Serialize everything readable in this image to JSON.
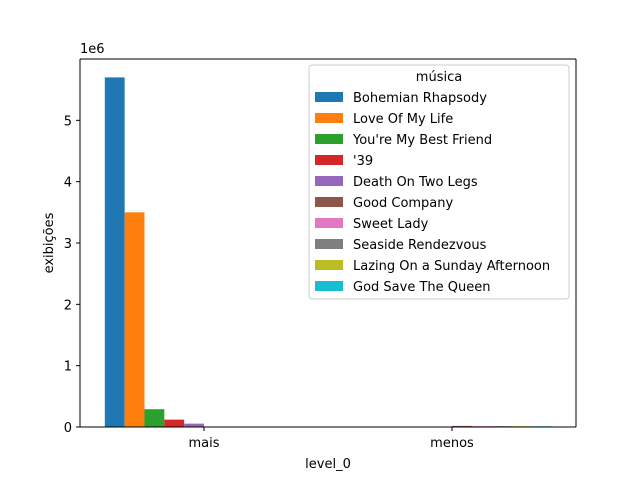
{
  "chart_data": {
    "type": "bar",
    "xlabel": "level_0",
    "ylabel": "exibições",
    "y_multiplier_label": "1e6",
    "y_scale": 1000000,
    "ylim": [
      0,
      6000000
    ],
    "yticks": [
      0,
      1,
      2,
      3,
      4,
      5
    ],
    "categories": [
      "mais",
      "menos"
    ],
    "grid": false,
    "legend": {
      "title": "música",
      "placement": "top-right"
    },
    "series": [
      {
        "name": "Bohemian Rhapsody",
        "color": "#1f77b4",
        "values": [
          5700000,
          0
        ]
      },
      {
        "name": "Love Of My Life",
        "color": "#ff7f0e",
        "values": [
          3500000,
          0
        ]
      },
      {
        "name": "You're My Best Friend",
        "color": "#2ca02c",
        "values": [
          290000,
          0
        ]
      },
      {
        "name": "'39",
        "color": "#d62728",
        "values": [
          120000,
          0
        ]
      },
      {
        "name": "Death On Two Legs",
        "color": "#9467bd",
        "values": [
          55000,
          0
        ]
      },
      {
        "name": "Good Company",
        "color": "#8c564b",
        "values": [
          0,
          18000
        ]
      },
      {
        "name": "Sweet Lady",
        "color": "#e377c2",
        "values": [
          0,
          15000
        ]
      },
      {
        "name": "Seaside Rendezvous",
        "color": "#7f7f7f",
        "values": [
          0,
          14000
        ]
      },
      {
        "name": "Lazing On a Sunday Afternoon",
        "color": "#bcbd22",
        "values": [
          0,
          13000
        ]
      },
      {
        "name": "God Save The Queen",
        "color": "#17becf",
        "values": [
          0,
          12000
        ]
      }
    ]
  }
}
